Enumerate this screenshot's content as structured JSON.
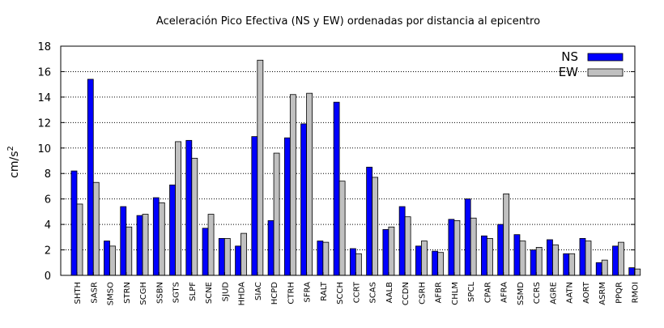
{
  "chart_data": {
    "type": "bar",
    "title": "Aceleración Pico Efectiva (NS y EW) ordenadas por distancia al epicentro",
    "ylabel_base": "cm/s",
    "ylabel_exp": "2",
    "xlabel": "",
    "ylim": [
      0,
      18
    ],
    "yticks": [
      0,
      2,
      4,
      6,
      8,
      10,
      12,
      14,
      16,
      18
    ],
    "grid": true,
    "legend": "top-right",
    "categories": [
      "SHTH",
      "SASR",
      "SMSO",
      "STRN",
      "SCGH",
      "SSBN",
      "SGTS",
      "SLPF",
      "SCNE",
      "SJUD",
      "HHDA",
      "SIAC",
      "HCPD",
      "CTRH",
      "SFRA",
      "RALT",
      "SCCH",
      "CCRT",
      "SCAS",
      "AALB",
      "CCDN",
      "CSRH",
      "AFBR",
      "CHLM",
      "SPCL",
      "CPAR",
      "AFRA",
      "SSMD",
      "CCRS",
      "AGRE",
      "AATN",
      "AORT",
      "ASRM",
      "PPQR",
      "RMOI"
    ],
    "series": [
      {
        "name": "NS",
        "color": "#0000ff",
        "values": [
          8.2,
          15.4,
          2.7,
          5.4,
          4.7,
          6.1,
          7.1,
          10.6,
          3.7,
          2.9,
          2.3,
          10.9,
          4.3,
          10.8,
          11.9,
          2.7,
          13.6,
          2.1,
          8.5,
          3.6,
          5.4,
          2.3,
          1.9,
          4.4,
          6.0,
          3.1,
          4.0,
          3.2,
          2.0,
          2.8,
          1.7,
          2.9,
          1.0,
          2.3,
          0.6
        ]
      },
      {
        "name": "EW",
        "color": "#c0c0c0",
        "values": [
          5.6,
          7.3,
          2.3,
          3.8,
          4.8,
          5.7,
          10.5,
          9.2,
          4.8,
          2.9,
          3.3,
          16.9,
          9.6,
          14.2,
          14.3,
          2.6,
          7.4,
          1.7,
          7.7,
          3.8,
          4.6,
          2.7,
          1.8,
          4.3,
          4.5,
          2.9,
          6.4,
          2.7,
          2.2,
          2.4,
          1.7,
          2.7,
          1.2,
          2.6,
          0.5
        ]
      }
    ]
  }
}
